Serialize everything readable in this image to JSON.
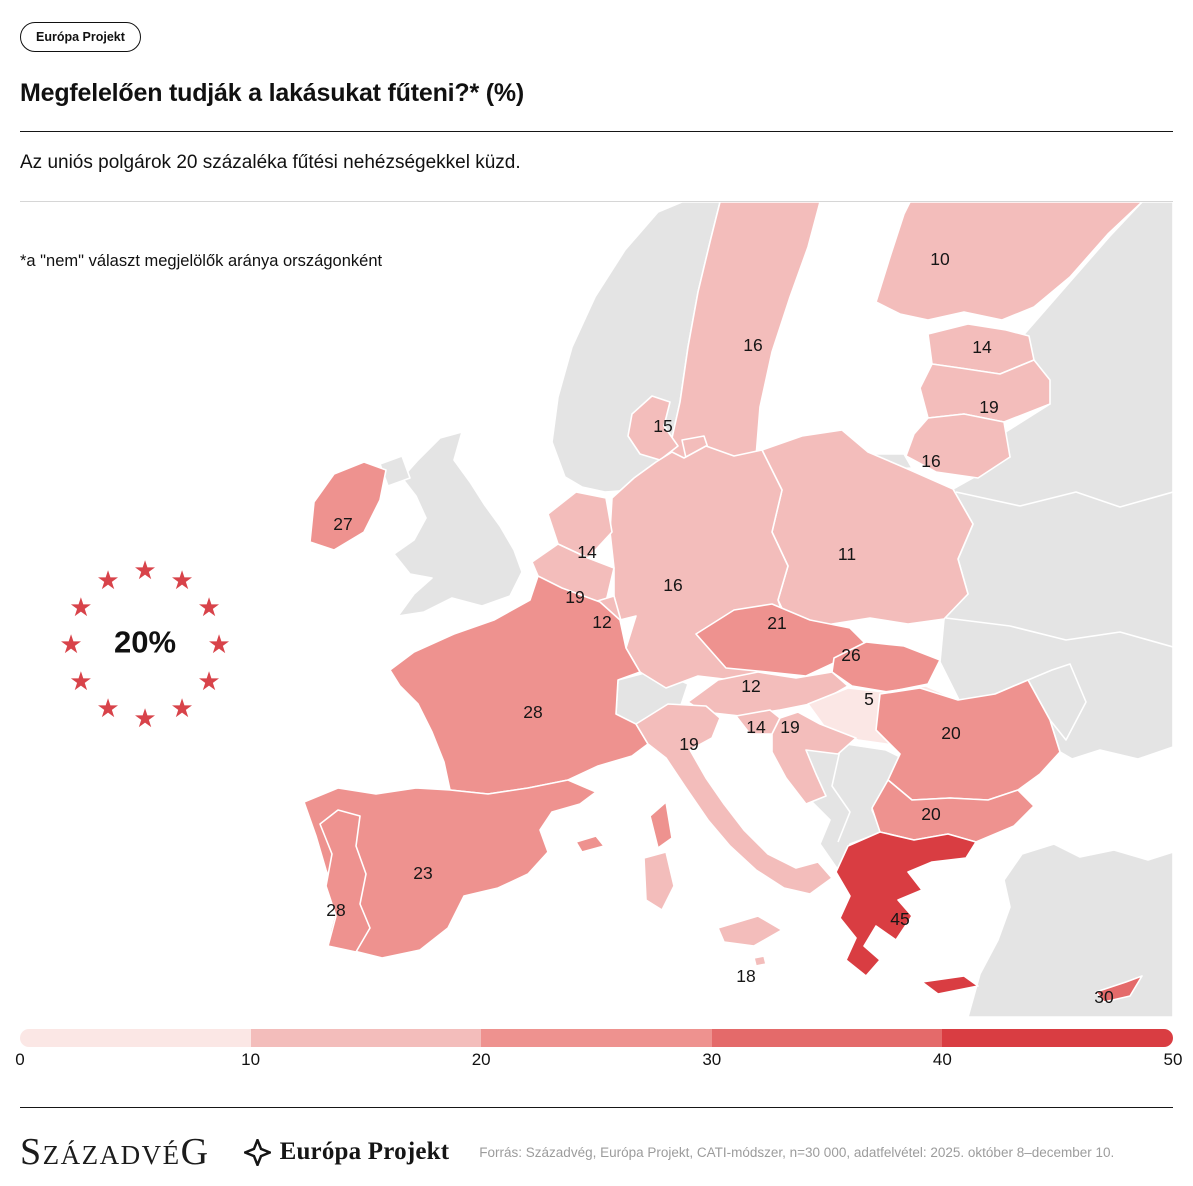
{
  "badge": {
    "label": "Európa Projekt"
  },
  "header": {
    "title": "Megfelelően tudják a lakásukat fűteni?* (%)",
    "subtitle": "Az uniós polgárok 20 százaléka fűtési nehézségekkel küzd."
  },
  "map_note": "*a \"nem\" választ megjelölők aránya országonként",
  "eu_average": {
    "value_label": "20%",
    "star_color": "#d8434a",
    "star_count": 12
  },
  "chart_data": {
    "type": "choropleth",
    "title": "Megfelelően tudják a lakásukat fűteni?* (%)",
    "unit": "%",
    "note": "*a \"nem\" választ megjelölők aránya országonként",
    "eu_average_percent": 20,
    "non_eu_color": "#e4e4e4",
    "colorbar": {
      "min": 0,
      "max": 50,
      "ticks": [
        "0",
        "10",
        "20",
        "30",
        "40",
        "50"
      ],
      "segment_colors": [
        "#fbe7e5",
        "#f3bdbb",
        "#ee928f",
        "#e46a6a",
        "#d93d42"
      ]
    },
    "countries": [
      {
        "key": "finland",
        "value": 10
      },
      {
        "key": "sweden",
        "value": 16
      },
      {
        "key": "estonia",
        "value": 14
      },
      {
        "key": "latvia",
        "value": 19
      },
      {
        "key": "lithuania",
        "value": 16
      },
      {
        "key": "denmark",
        "value": 15
      },
      {
        "key": "ireland",
        "value": 27
      },
      {
        "key": "netherlands",
        "value": 14
      },
      {
        "key": "belgium",
        "value": 19
      },
      {
        "key": "luxembourg",
        "value": 12
      },
      {
        "key": "germany",
        "value": 16
      },
      {
        "key": "poland",
        "value": 11
      },
      {
        "key": "czechia",
        "value": 21
      },
      {
        "key": "slovakia",
        "value": 26
      },
      {
        "key": "austria",
        "value": 12
      },
      {
        "key": "hungary",
        "value": 5
      },
      {
        "key": "slovenia",
        "value": 14
      },
      {
        "key": "croatia",
        "value": 19
      },
      {
        "key": "italy",
        "value": 19
      },
      {
        "key": "france",
        "value": 28
      },
      {
        "key": "spain",
        "value": 23
      },
      {
        "key": "portugal",
        "value": 28
      },
      {
        "key": "romania",
        "value": 20
      },
      {
        "key": "bulgaria",
        "value": 20
      },
      {
        "key": "greece",
        "value": 45
      },
      {
        "key": "malta",
        "value": 18
      },
      {
        "key": "cyprus",
        "value": 30
      }
    ]
  },
  "footer": {
    "szazadveg_first": "S",
    "szazadveg_mid": "ZÁZADVÉ",
    "szazadveg_last": "G",
    "europa_logo": "Európa Projekt",
    "source": "Forrás: Századvég, Európa Projekt, CATI-módszer, n=30 000, adatfelvétel: 2025. október 8–december 10."
  }
}
